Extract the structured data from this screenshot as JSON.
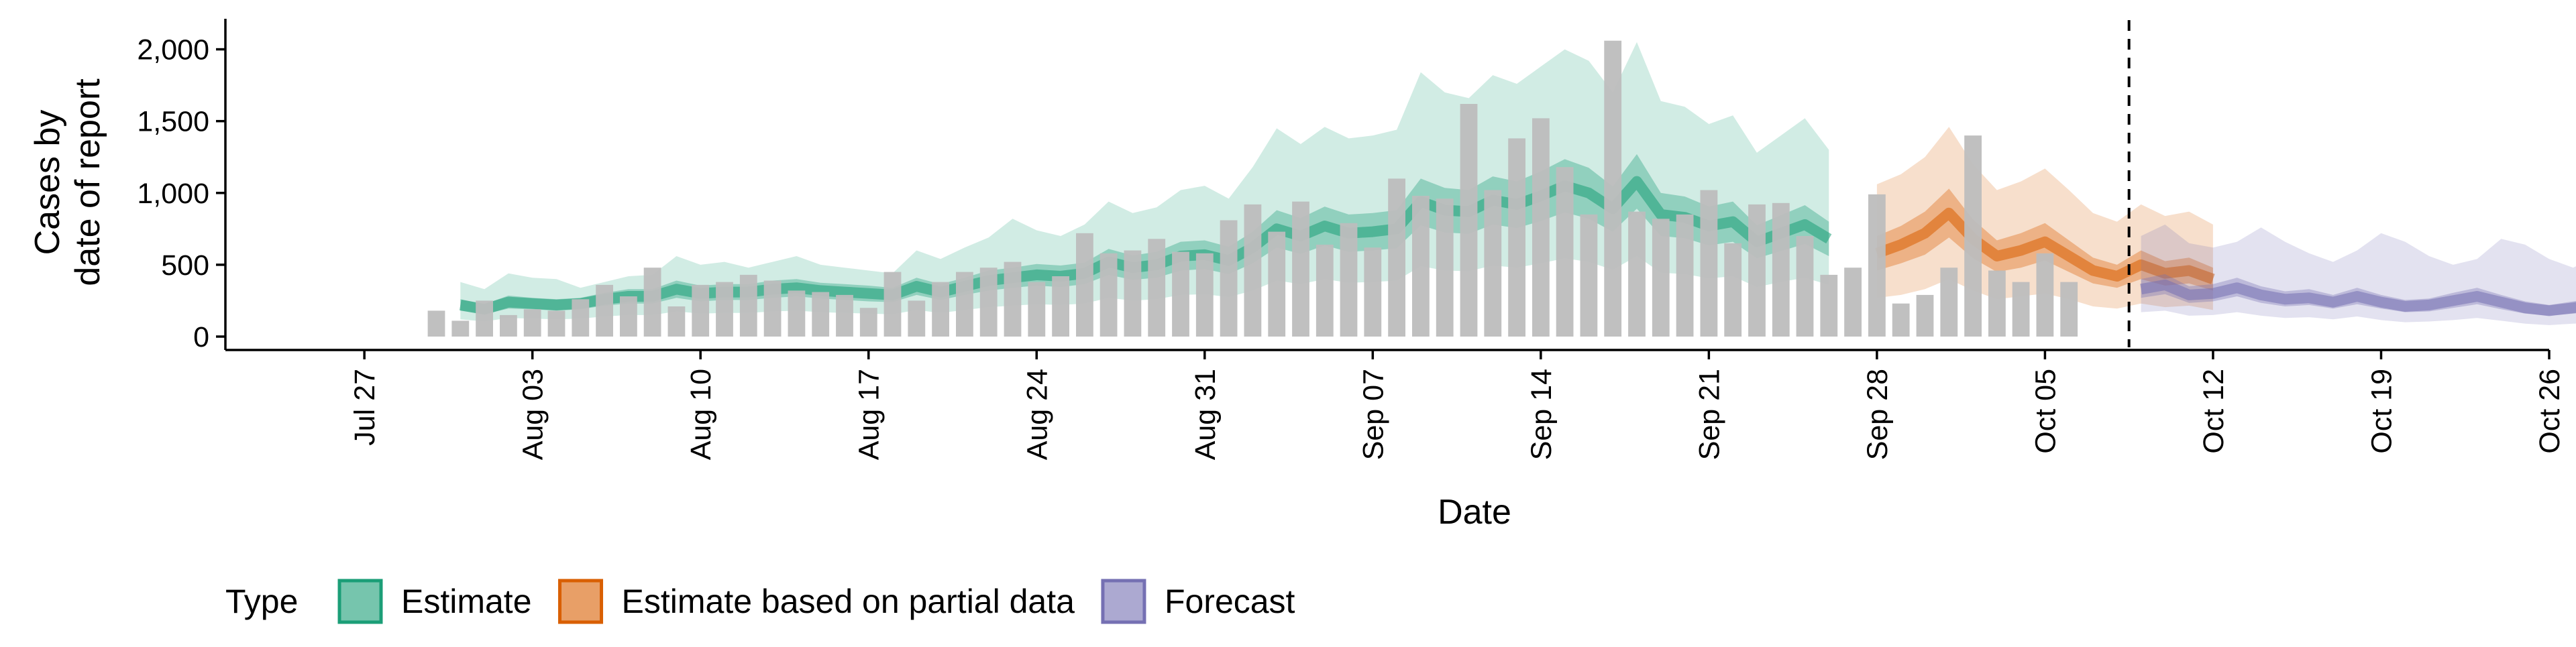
{
  "chart_data": {
    "type": "bar",
    "ylabel": [
      "Cases by",
      "date of report"
    ],
    "xlabel": "Date",
    "ylim": [
      0,
      2250
    ],
    "yticks": [
      {
        "value": 0,
        "label": "0"
      },
      {
        "value": 500,
        "label": "500"
      },
      {
        "value": 1000,
        "label": "1,000"
      },
      {
        "value": 1500,
        "label": "1,500"
      },
      {
        "value": 2000,
        "label": "2,000"
      }
    ],
    "xlim": [
      "2020-07-23",
      "2020-10-26"
    ],
    "xticks": [
      {
        "date": "2020-07-27",
        "label": "Jul 27"
      },
      {
        "date": "2020-08-03",
        "label": "Aug 03"
      },
      {
        "date": "2020-08-10",
        "label": "Aug 10"
      },
      {
        "date": "2020-08-17",
        "label": "Aug 17"
      },
      {
        "date": "2020-08-24",
        "label": "Aug 24"
      },
      {
        "date": "2020-08-31",
        "label": "Aug 31"
      },
      {
        "date": "2020-09-07",
        "label": "Sep 07"
      },
      {
        "date": "2020-09-14",
        "label": "Sep 14"
      },
      {
        "date": "2020-09-21",
        "label": "Sep 21"
      },
      {
        "date": "2020-09-28",
        "label": "Sep 28"
      },
      {
        "date": "2020-10-05",
        "label": "Oct 05"
      },
      {
        "date": "2020-10-12",
        "label": "Oct 12"
      },
      {
        "date": "2020-10-19",
        "label": "Oct 19"
      },
      {
        "date": "2020-10-26",
        "label": "Oct 26"
      }
    ],
    "vline_date": "2020-10-08",
    "bar_color": "#bdbdbd",
    "bars": {
      "start": "2020-07-30",
      "values": [
        180,
        110,
        250,
        150,
        190,
        180,
        260,
        360,
        280,
        480,
        210,
        360,
        380,
        430,
        390,
        320,
        310,
        290,
        200,
        450,
        250,
        380,
        450,
        480,
        520,
        380,
        420,
        720,
        580,
        600,
        680,
        590,
        580,
        810,
        920,
        730,
        940,
        640,
        790,
        620,
        1100,
        980,
        960,
        1620,
        1020,
        1380,
        1520,
        1180,
        850,
        2060,
        870,
        820,
        850,
        1020,
        650,
        920,
        930,
        700,
        430,
        480,
        990,
        230,
        290,
        480,
        1400,
        460,
        380,
        580,
        380
      ]
    },
    "series": [
      {
        "name": "Estimate",
        "color": "#1b9e77",
        "start": "2020-07-31",
        "median": [
          220,
          190,
          240,
          230,
          220,
          230,
          260,
          280,
          280,
          330,
          300,
          310,
          310,
          330,
          340,
          320,
          310,
          300,
          290,
          350,
          310,
          350,
          390,
          410,
          430,
          420,
          440,
          520,
          480,
          500,
          560,
          570,
          530,
          620,
          750,
          700,
          770,
          720,
          730,
          750,
          940,
          880,
          870,
          950,
          920,
          980,
          1050,
          1000,
          890,
          1080,
          850,
          830,
          770,
          800,
          660,
          720,
          780,
          680
        ],
        "inner_lo": [
          180,
          155,
          195,
          190,
          180,
          190,
          215,
          230,
          230,
          270,
          245,
          255,
          255,
          270,
          280,
          265,
          255,
          245,
          240,
          290,
          255,
          290,
          320,
          340,
          355,
          345,
          365,
          430,
          395,
          410,
          460,
          470,
          435,
          510,
          620,
          575,
          635,
          590,
          600,
          615,
          775,
          725,
          715,
          780,
          755,
          805,
          865,
          820,
          730,
          890,
          700,
          685,
          635,
          660,
          545,
          595,
          645,
          560
        ],
        "inner_hi": [
          260,
          225,
          285,
          270,
          260,
          270,
          305,
          330,
          330,
          390,
          355,
          365,
          365,
          390,
          400,
          375,
          365,
          355,
          340,
          410,
          365,
          410,
          460,
          480,
          505,
          495,
          515,
          610,
          565,
          590,
          660,
          670,
          625,
          730,
          880,
          825,
          905,
          850,
          860,
          880,
          1100,
          1035,
          1020,
          1115,
          1080,
          1150,
          1235,
          1175,
          1045,
          1270,
          1000,
          975,
          905,
          940,
          775,
          845,
          915,
          800
        ],
        "outer_lo": [
          120,
          105,
          130,
          125,
          120,
          125,
          140,
          150,
          150,
          175,
          160,
          165,
          165,
          175,
          180,
          170,
          165,
          160,
          155,
          185,
          165,
          185,
          205,
          215,
          225,
          220,
          230,
          270,
          250,
          260,
          290,
          295,
          275,
          320,
          390,
          365,
          400,
          375,
          380,
          390,
          490,
          460,
          455,
          495,
          480,
          510,
          545,
          520,
          465,
          560,
          445,
          435,
          405,
          420,
          345,
          380,
          410,
          360
        ],
        "outer_hi": [
          380,
          330,
          440,
          410,
          400,
          340,
          380,
          420,
          430,
          560,
          500,
          520,
          480,
          520,
          560,
          500,
          480,
          460,
          440,
          600,
          540,
          620,
          690,
          820,
          740,
          700,
          780,
          940,
          860,
          900,
          1020,
          1050,
          960,
          1180,
          1450,
          1340,
          1460,
          1380,
          1400,
          1440,
          1840,
          1700,
          1660,
          1820,
          1760,
          1880,
          2000,
          1920,
          1700,
          2050,
          1640,
          1600,
          1480,
          1540,
          1280,
          1400,
          1520,
          1300
        ]
      },
      {
        "name": "Estimate based on partial data",
        "color": "#d95f02",
        "start": "2020-09-28",
        "median": [
          580,
          640,
          720,
          860,
          680,
          560,
          600,
          660,
          560,
          460,
          420,
          500,
          440,
          460,
          400
        ],
        "inner_lo": [
          460,
          510,
          570,
          690,
          545,
          450,
          480,
          530,
          450,
          370,
          340,
          400,
          355,
          370,
          320
        ],
        "inner_hi": [
          700,
          770,
          870,
          1030,
          815,
          670,
          720,
          790,
          670,
          550,
          500,
          600,
          525,
          550,
          480
        ],
        "outer_lo": [
          270,
          290,
          330,
          400,
          320,
          260,
          280,
          300,
          260,
          210,
          195,
          230,
          205,
          215,
          185
        ],
        "outer_hi": [
          1060,
          1130,
          1250,
          1460,
          1200,
          1020,
          1080,
          1170,
          1020,
          860,
          800,
          920,
          840,
          870,
          780
        ]
      },
      {
        "name": "Forecast",
        "color": "#7570b3",
        "start": "2020-10-09",
        "median": [
          330,
          360,
          290,
          300,
          340,
          290,
          260,
          270,
          240,
          280,
          240,
          210,
          220,
          250,
          280,
          240,
          200,
          180,
          200,
          220,
          180,
          150
        ],
        "inner_lo": [
          270,
          295,
          235,
          245,
          280,
          235,
          210,
          220,
          195,
          225,
          195,
          170,
          175,
          200,
          225,
          190,
          160,
          145,
          160,
          175,
          140,
          120
        ],
        "inner_hi": [
          400,
          435,
          350,
          365,
          410,
          350,
          315,
          330,
          290,
          340,
          290,
          255,
          265,
          305,
          340,
          290,
          245,
          220,
          245,
          270,
          220,
          185
        ],
        "outer_lo": [
          170,
          180,
          145,
          150,
          170,
          145,
          130,
          135,
          120,
          140,
          115,
          100,
          105,
          115,
          130,
          110,
          90,
          80,
          90,
          95,
          75,
          60
        ],
        "outer_hi": [
          700,
          780,
          650,
          620,
          660,
          760,
          660,
          580,
          520,
          600,
          720,
          660,
          560,
          500,
          540,
          680,
          640,
          540,
          480,
          560,
          740,
          620
        ]
      }
    ],
    "legend": {
      "title": "Type",
      "items": [
        {
          "label": "Estimate",
          "color": "#1b9e77"
        },
        {
          "label": "Estimate based on partial data",
          "color": "#d95f02"
        },
        {
          "label": "Forecast",
          "color": "#7570b3"
        }
      ]
    }
  }
}
